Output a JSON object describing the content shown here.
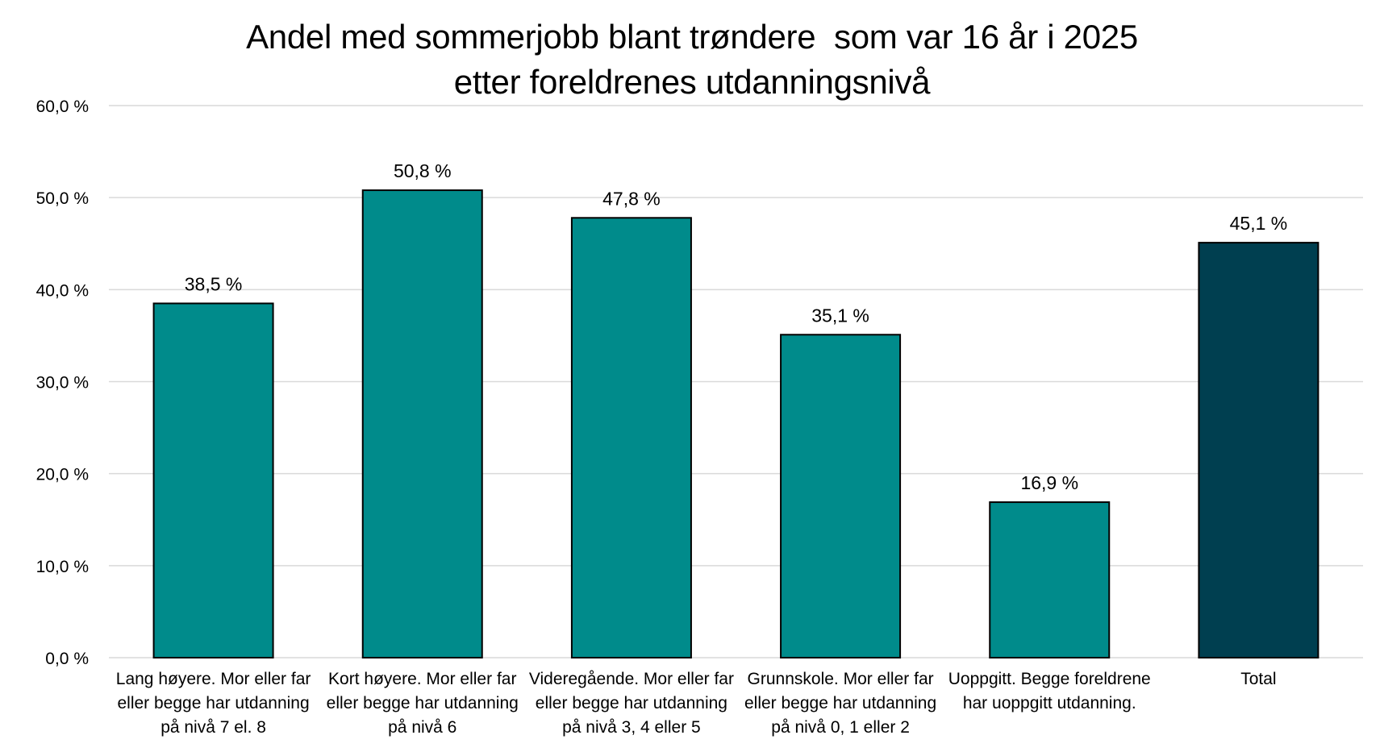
{
  "chart_data": {
    "type": "bar",
    "title_lines": [
      "Andel med sommerjobb blant trøndere  som var 16 år i 2025",
      "etter foreldrenes utdanningsnivå"
    ],
    "categories": [
      "Lang høyere. Mor eller far eller begge har utdanning på nivå 7 el. 8",
      "Kort høyere. Mor eller far eller begge har utdanning på nivå 6",
      "Videregående. Mor eller far eller begge har utdanning på nivå 3, 4 eller 5",
      "Grunnskole. Mor eller far eller begge har utdanning på nivå 0, 1 eller 2",
      "Uoppgitt. Begge foreldrene har uoppgitt utdanning.",
      "Total"
    ],
    "category_label_lines": [
      [
        "Lang høyere. Mor eller far",
        "eller begge har utdanning",
        "på nivå 7 el. 8"
      ],
      [
        "Kort høyere. Mor eller far",
        "eller begge har utdanning",
        "på nivå 6"
      ],
      [
        "Videregående. Mor eller far",
        "eller begge har utdanning",
        "på nivå 3, 4 eller 5"
      ],
      [
        "Grunnskole. Mor eller far",
        "eller begge har utdanning",
        "på nivå 0, 1 eller 2"
      ],
      [
        "Uoppgitt. Begge foreldrene",
        "har uoppgitt utdanning."
      ],
      [
        "Total"
      ]
    ],
    "values": [
      38.5,
      50.8,
      47.8,
      35.1,
      16.9,
      45.1
    ],
    "data_labels": [
      "38,5 %",
      "50,8 %",
      "47,8 %",
      "35,1 %",
      "16,9 %",
      "45,1 %"
    ],
    "ylim": [
      0,
      60
    ],
    "yticks": [
      0,
      10,
      20,
      30,
      40,
      50,
      60
    ],
    "ytick_labels": [
      "0,0 %",
      "10,0 %",
      "20,0 %",
      "30,0 %",
      "40,0 %",
      "50,0 %",
      "60,0 %"
    ],
    "grid": true,
    "legend": "none",
    "bar_colors": [
      "#008b8b",
      "#008b8b",
      "#008b8b",
      "#008b8b",
      "#008b8b",
      "#003f50"
    ],
    "bar_outline_color": "#000000",
    "grid_color": "#d9d9d9"
  }
}
